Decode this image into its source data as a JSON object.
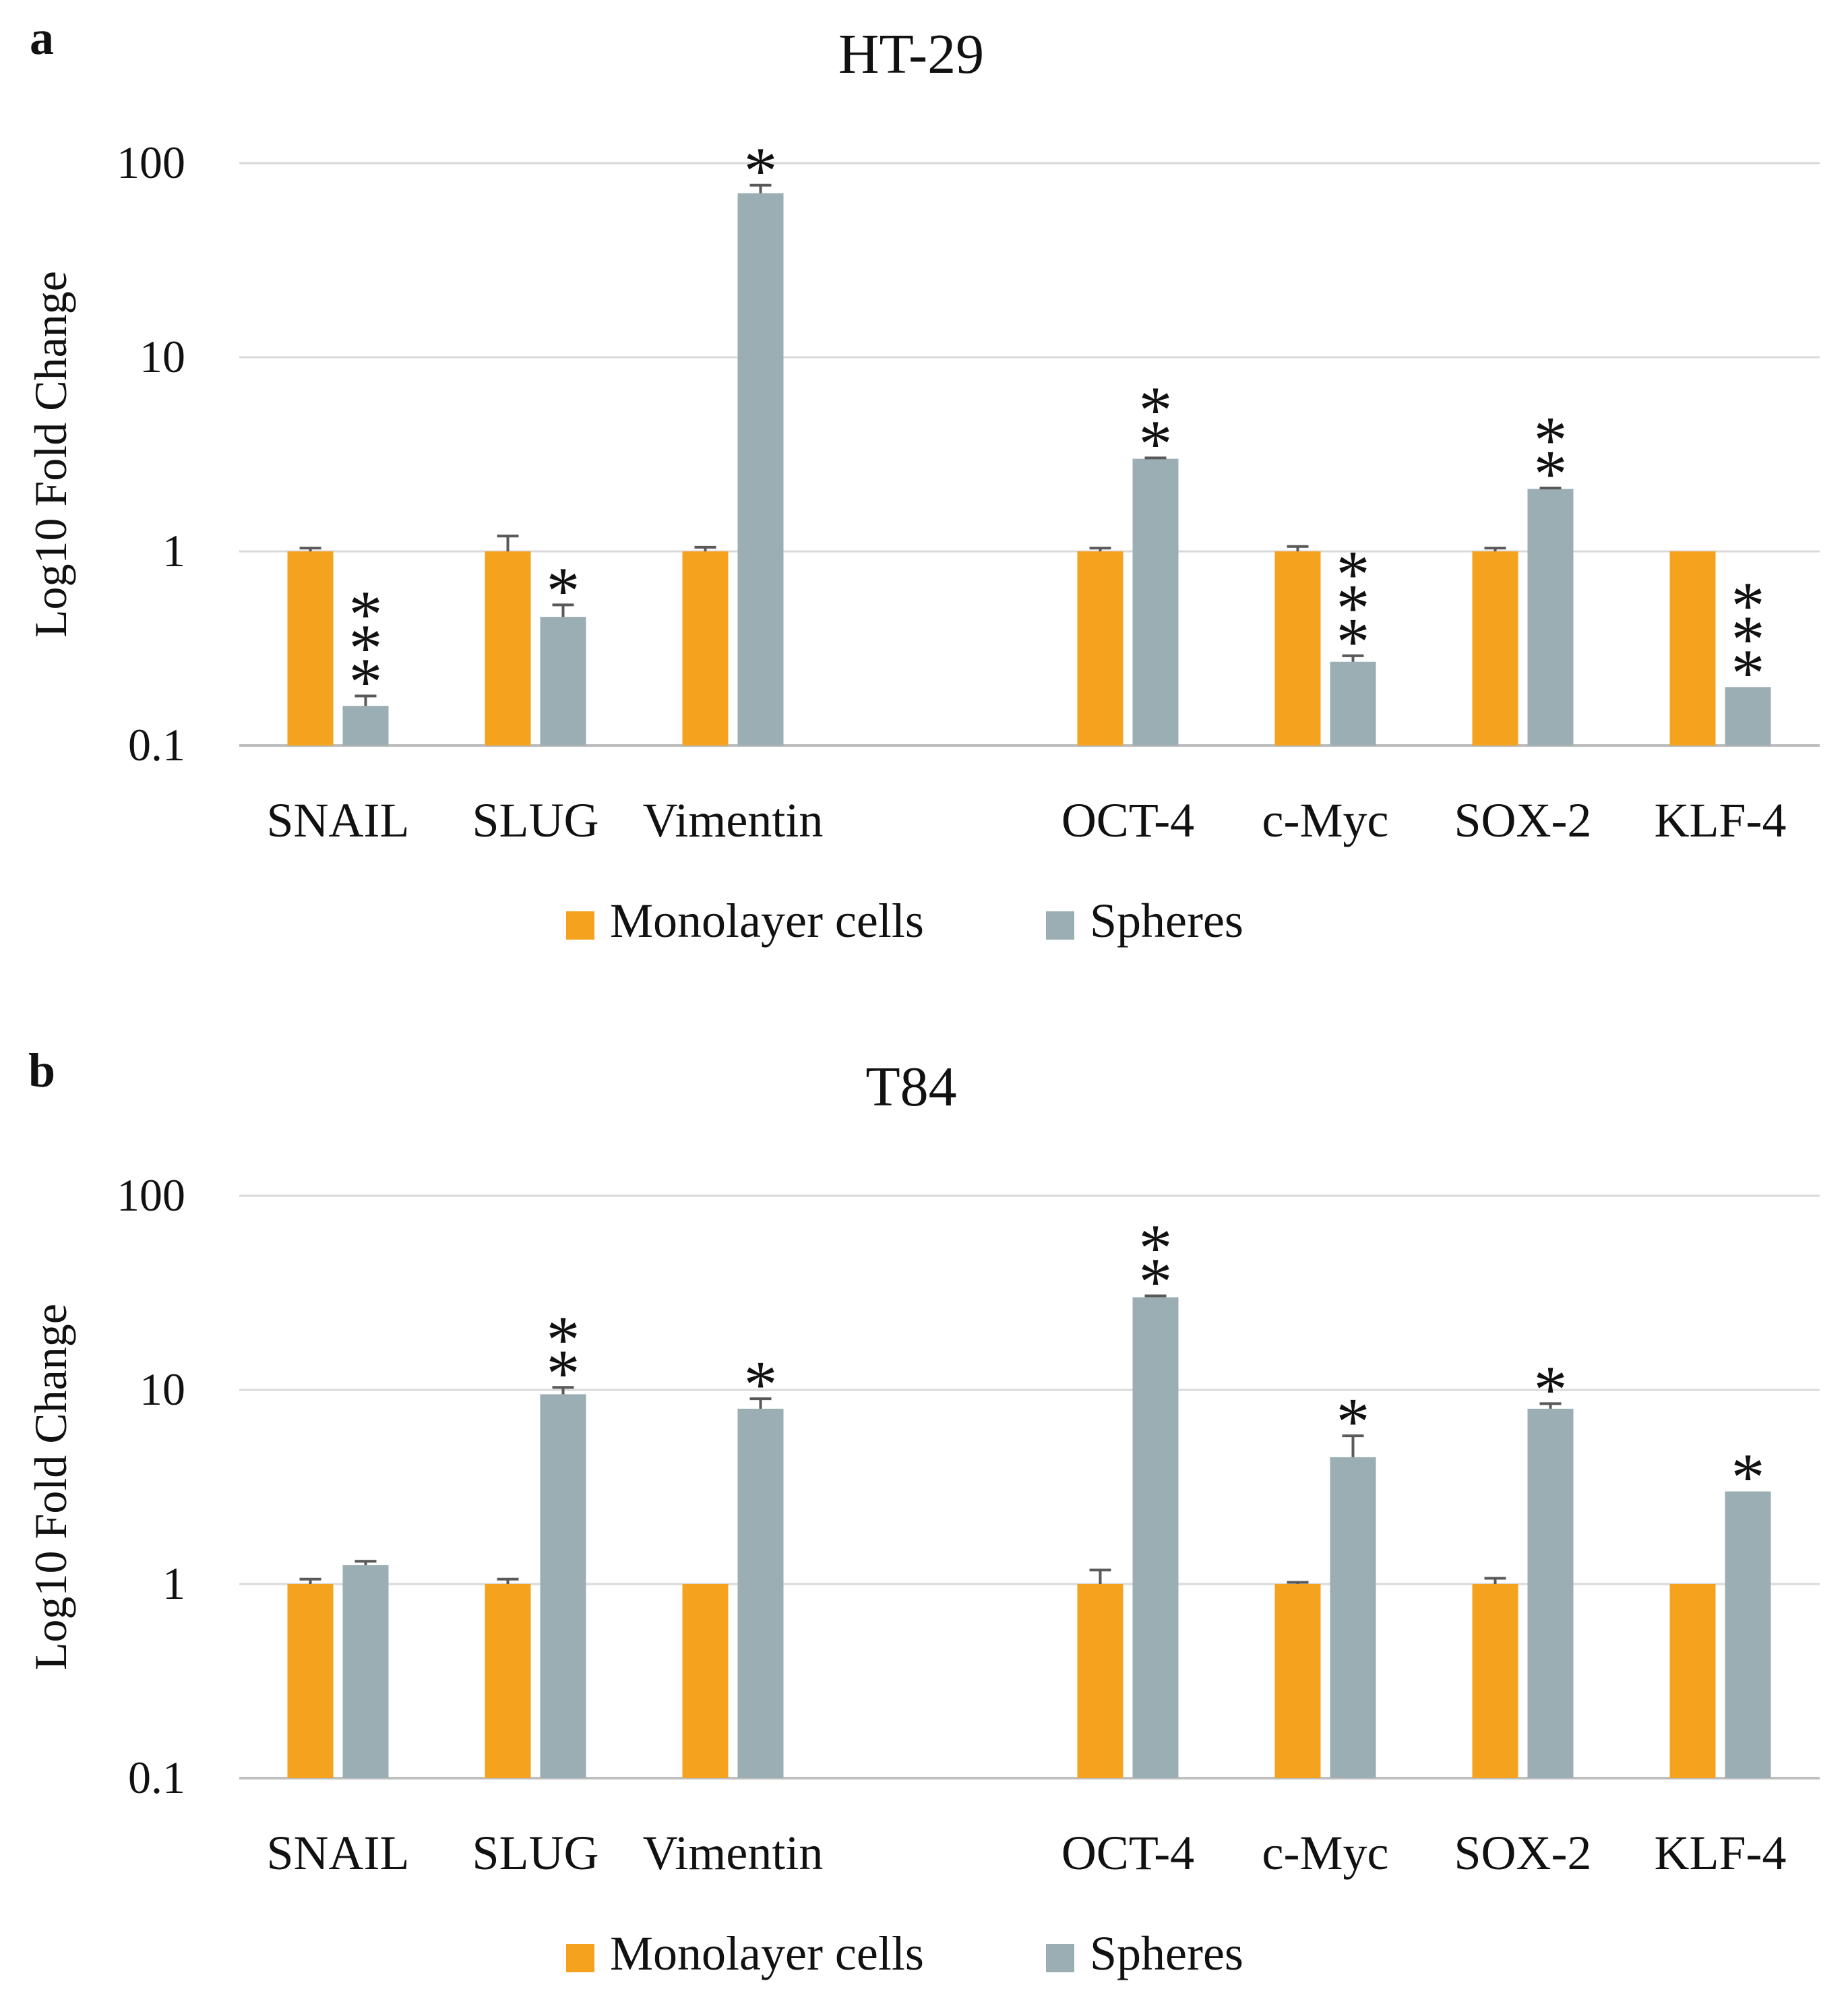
{
  "colors": {
    "monolayer": "#F5A21F",
    "spheres": "#9BAEB3",
    "gridline": "#D9D9D9",
    "axis": "#BFBFBF",
    "errorbar": "#595959",
    "text": "#111111"
  },
  "chart_data": [
    {
      "type": "bar",
      "panel_label": "a",
      "title": "HT-29",
      "ylabel": "Log10 Fold Change",
      "yscale": "log10",
      "ylim": [
        0.1,
        100
      ],
      "yticks": [
        "0.1",
        "1",
        "10",
        "100"
      ],
      "grid": true,
      "categories": [
        "SNAIL",
        "SLUG",
        "Vimentin",
        "",
        "OCT-4",
        "c-Myc",
        "SOX-2",
        "KLF-4"
      ],
      "series": [
        {
          "name": "Monolayer cells",
          "values": [
            1.0,
            1.0,
            1.0,
            null,
            1.0,
            1.0,
            1.0,
            1.0
          ],
          "errors": [
            0.04,
            0.2,
            0.05,
            null,
            0.04,
            0.06,
            0.04,
            0.0
          ],
          "significance": [
            "",
            "",
            "",
            "",
            "",
            "",
            "",
            ""
          ]
        },
        {
          "name": "Spheres",
          "values": [
            0.16,
            0.46,
            70,
            null,
            3.0,
            0.27,
            2.1,
            0.2
          ],
          "errors": [
            0.02,
            0.07,
            7,
            null,
            0.03,
            0.02,
            0.02,
            0.0
          ],
          "significance": [
            "***",
            "*",
            "*",
            "",
            "**",
            "***",
            "**",
            "***"
          ]
        }
      ],
      "legend": [
        "Monolayer cells",
        "Spheres"
      ],
      "legend_position": "bottom"
    },
    {
      "type": "bar",
      "panel_label": "b",
      "title": "T84",
      "ylabel": "Log10 Fold Change",
      "yscale": "log10",
      "ylim": [
        0.1,
        100
      ],
      "yticks": [
        "0.1",
        "1",
        "10",
        "100"
      ],
      "grid": true,
      "categories": [
        "SNAIL",
        "SLUG",
        "Vimentin",
        "",
        "OCT-4",
        "c-Myc",
        "SOX-2",
        "KLF-4"
      ],
      "series": [
        {
          "name": "Monolayer cells",
          "values": [
            1.0,
            1.0,
            1.0,
            null,
            1.0,
            1.0,
            1.0,
            1.0
          ],
          "errors": [
            0.06,
            0.06,
            0.0,
            null,
            0.18,
            0.02,
            0.07,
            0.0
          ],
          "significance": [
            "",
            "",
            "",
            "",
            "",
            "",
            "",
            ""
          ]
        },
        {
          "name": "Spheres",
          "values": [
            1.25,
            9.5,
            8.0,
            null,
            30,
            4.5,
            8.0,
            3.0
          ],
          "errors": [
            0.06,
            0.8,
            1.0,
            null,
            0.5,
            1.3,
            0.5,
            0.0
          ],
          "significance": [
            "",
            "**",
            "*",
            "",
            "**",
            "*",
            "*",
            "*"
          ]
        }
      ],
      "legend": [
        "Monolayer cells",
        "Spheres"
      ],
      "legend_position": "bottom"
    }
  ]
}
